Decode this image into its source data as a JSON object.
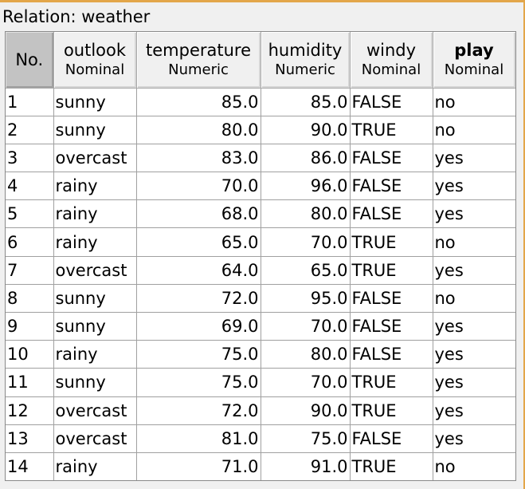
{
  "relation_label": "Relation: weather",
  "columns": [
    {
      "name": "No.",
      "type": ""
    },
    {
      "name": "outlook",
      "type": "Nominal"
    },
    {
      "name": "temperature",
      "type": "Numeric"
    },
    {
      "name": "humidity",
      "type": "Numeric"
    },
    {
      "name": "windy",
      "type": "Nominal"
    },
    {
      "name": "play",
      "type": "Nominal"
    }
  ],
  "rows": [
    [
      "1",
      "sunny",
      "85.0",
      "85.0",
      "FALSE",
      "no"
    ],
    [
      "2",
      "sunny",
      "80.0",
      "90.0",
      "TRUE",
      "no"
    ],
    [
      "3",
      "overcast",
      "83.0",
      "86.0",
      "FALSE",
      "yes"
    ],
    [
      "4",
      "rainy",
      "70.0",
      "96.0",
      "FALSE",
      "yes"
    ],
    [
      "5",
      "rainy",
      "68.0",
      "80.0",
      "FALSE",
      "yes"
    ],
    [
      "6",
      "rainy",
      "65.0",
      "70.0",
      "TRUE",
      "no"
    ],
    [
      "7",
      "overcast",
      "64.0",
      "65.0",
      "TRUE",
      "yes"
    ],
    [
      "8",
      "sunny",
      "72.0",
      "95.0",
      "FALSE",
      "no"
    ],
    [
      "9",
      "sunny",
      "69.0",
      "70.0",
      "FALSE",
      "yes"
    ],
    [
      "10",
      "rainy",
      "75.0",
      "80.0",
      "FALSE",
      "yes"
    ],
    [
      "11",
      "sunny",
      "75.0",
      "70.0",
      "TRUE",
      "yes"
    ],
    [
      "12",
      "overcast",
      "72.0",
      "90.0",
      "TRUE",
      "yes"
    ],
    [
      "13",
      "overcast",
      "81.0",
      "75.0",
      "FALSE",
      "yes"
    ],
    [
      "14",
      "rainy",
      "71.0",
      "91.0",
      "TRUE",
      "no"
    ]
  ]
}
